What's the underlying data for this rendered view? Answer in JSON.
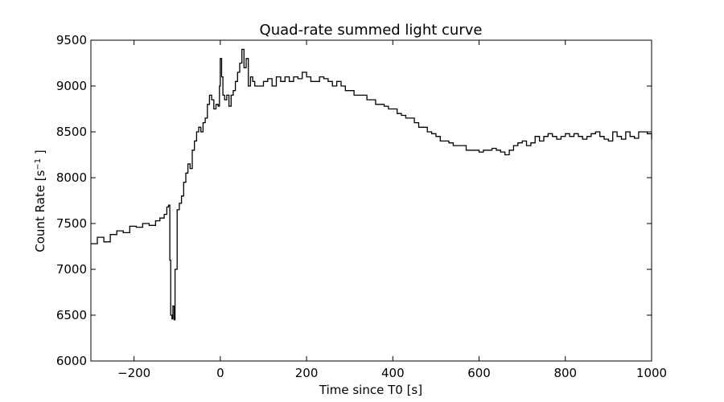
{
  "chart_data": {
    "type": "line",
    "title": "Quad-rate summed light curve",
    "xlabel": "Time since T0 [s]",
    "ylabel": {
      "base": "Count Rate [s",
      "sup": "−1",
      "end": " ]"
    },
    "xlim": [
      -300,
      1000
    ],
    "ylim": [
      6000,
      9500
    ],
    "xticks": [
      -200,
      0,
      200,
      400,
      600,
      800,
      1000
    ],
    "xtick_labels": [
      "−200",
      "0",
      "200",
      "400",
      "600",
      "800",
      "1000"
    ],
    "yticks": [
      6000,
      6500,
      7000,
      7500,
      8000,
      8500,
      9000,
      9500
    ],
    "ytick_labels": [
      "6000",
      "6500",
      "7000",
      "7500",
      "8000",
      "8500",
      "9000",
      "9500"
    ],
    "grid": false,
    "legend": "none",
    "line_color": "#000000",
    "step": true,
    "series": [
      {
        "x": [
          -300,
          -285,
          -270,
          -255,
          -240,
          -225,
          -210,
          -195,
          -180,
          -165,
          -150,
          -140,
          -130,
          -124,
          -120,
          -117,
          -115,
          -112,
          -110,
          -107,
          -105,
          -100,
          -95,
          -90,
          -85,
          -80,
          -75,
          -70,
          -65,
          -60,
          -55,
          -50,
          -45,
          -40,
          -35,
          -30,
          -25,
          -20,
          -15,
          -10,
          -5,
          -2,
          0,
          3,
          6,
          10,
          15,
          20,
          25,
          30,
          35,
          40,
          45,
          50,
          55,
          60,
          65,
          70,
          75,
          80,
          90,
          100,
          110,
          120,
          130,
          140,
          150,
          160,
          170,
          180,
          190,
          200,
          210,
          220,
          230,
          240,
          250,
          260,
          270,
          280,
          290,
          300,
          310,
          320,
          330,
          340,
          350,
          360,
          370,
          380,
          390,
          400,
          410,
          420,
          430,
          440,
          450,
          460,
          470,
          480,
          490,
          500,
          510,
          520,
          530,
          540,
          550,
          560,
          570,
          580,
          590,
          600,
          610,
          620,
          630,
          640,
          650,
          660,
          670,
          680,
          690,
          700,
          710,
          720,
          730,
          740,
          750,
          760,
          770,
          780,
          790,
          800,
          810,
          820,
          830,
          840,
          850,
          860,
          870,
          880,
          890,
          900,
          910,
          920,
          930,
          940,
          950,
          960,
          970,
          980,
          990,
          1000
        ],
        "y": [
          7280,
          7350,
          7300,
          7380,
          7420,
          7400,
          7470,
          7460,
          7500,
          7480,
          7530,
          7560,
          7600,
          7680,
          7700,
          7100,
          6500,
          6460,
          6600,
          6450,
          7000,
          7650,
          7720,
          7800,
          7950,
          8050,
          8150,
          8100,
          8300,
          8400,
          8500,
          8550,
          8500,
          8600,
          8650,
          8800,
          8900,
          8850,
          8750,
          8800,
          8780,
          9000,
          9300,
          9100,
          8900,
          8850,
          8900,
          8780,
          8900,
          8950,
          9050,
          9150,
          9250,
          9400,
          9200,
          9300,
          9000,
          9100,
          9050,
          9000,
          9000,
          9050,
          9080,
          9000,
          9100,
          9050,
          9100,
          9050,
          9100,
          9080,
          9150,
          9100,
          9050,
          9050,
          9100,
          9080,
          9050,
          9000,
          9050,
          9000,
          8950,
          8950,
          8900,
          8900,
          8900,
          8850,
          8850,
          8800,
          8800,
          8780,
          8750,
          8750,
          8700,
          8680,
          8650,
          8650,
          8600,
          8550,
          8550,
          8500,
          8480,
          8450,
          8400,
          8400,
          8380,
          8350,
          8350,
          8350,
          8300,
          8300,
          8300,
          8280,
          8300,
          8300,
          8320,
          8300,
          8280,
          8250,
          8300,
          8350,
          8380,
          8400,
          8350,
          8380,
          8450,
          8400,
          8450,
          8480,
          8450,
          8420,
          8450,
          8480,
          8450,
          8480,
          8450,
          8420,
          8450,
          8480,
          8500,
          8450,
          8420,
          8400,
          8500,
          8450,
          8420,
          8500,
          8450,
          8430,
          8500,
          8500,
          8480,
          8420
        ]
      }
    ]
  }
}
